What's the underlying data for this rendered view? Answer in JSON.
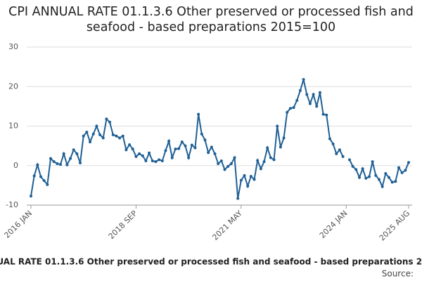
{
  "chart_data": {
    "type": "line",
    "title": "CPI ANNUAL RATE 01.1.3.6 Other preserved or processed fish and seafood - based preparations 2015=100",
    "source": "Source:",
    "categories": [
      "2016 JAN",
      null,
      null,
      null,
      null,
      null,
      null,
      null,
      null,
      null,
      null,
      null,
      null,
      null,
      null,
      null,
      null,
      null,
      null,
      null,
      null,
      null,
      null,
      null,
      null,
      null,
      null,
      null,
      null,
      null,
      null,
      null,
      "2018 SEP",
      null,
      null,
      null,
      null,
      null,
      null,
      null,
      null,
      null,
      null,
      null,
      null,
      null,
      null,
      null,
      null,
      null,
      null,
      null,
      null,
      null,
      null,
      null,
      null,
      null,
      null,
      null,
      null,
      null,
      null,
      null,
      "2021 MAY",
      null,
      null,
      null,
      null,
      null,
      null,
      null,
      null,
      null,
      null,
      null,
      null,
      null,
      null,
      null,
      null,
      null,
      null,
      null,
      null,
      null,
      null,
      null,
      null,
      null,
      null,
      null,
      null,
      null,
      null,
      null,
      "2024 JAN",
      null,
      null,
      null,
      null,
      null,
      null,
      null,
      null,
      null,
      null,
      null,
      null,
      null,
      null,
      null,
      null,
      null,
      null,
      "2025 AUG"
    ],
    "series": [
      {
        "name": "CPI ANNUAL RATE 01.1.3.6",
        "color": "#206095",
        "values": [
          -7.7,
          -2.6,
          0.2,
          -2.8,
          -3.8,
          -4.8,
          1.8,
          1.0,
          0.5,
          0.3,
          3.0,
          0.2,
          1.8,
          4.0,
          3.0,
          0.7,
          7.5,
          8.5,
          6.0,
          8.0,
          10.0,
          7.8,
          7.0,
          11.8,
          11.0,
          7.8,
          7.5,
          7.0,
          7.5,
          4.0,
          5.3,
          4.2,
          2.3,
          3.0,
          2.5,
          1.2,
          3.2,
          1.2,
          1.0,
          1.5,
          1.2,
          3.8,
          6.2,
          2.0,
          4.2,
          4.3,
          6.0,
          5.0,
          2.0,
          5.2,
          4.5,
          13.0,
          8.0,
          6.5,
          3.3,
          4.7,
          3.0,
          0.5,
          1.2,
          -1.0,
          -0.2,
          0.5,
          2.0,
          -8.3,
          -3.7,
          -2.5,
          -5.2,
          -2.7,
          -3.5,
          1.3,
          -0.8,
          1.0,
          4.5,
          2.0,
          1.5,
          10.0,
          4.7,
          7.0,
          13.5,
          14.5,
          14.7,
          16.5,
          19.0,
          21.8,
          18.0,
          15.7,
          18.0,
          15.0,
          18.5,
          13.0,
          12.8,
          6.8,
          5.5,
          3.0,
          4.0,
          2.3,
          null,
          1.5,
          -0.2,
          -1.0,
          -3.0,
          -0.8,
          -3.2,
          -2.8,
          1.0,
          -2.5,
          -3.5,
          -5.3,
          -2.0,
          -3.0,
          -4.2,
          -4.0,
          -0.5,
          -1.8,
          -1.2,
          0.8
        ]
      }
    ],
    "ylim": [
      -10,
      30
    ],
    "yticks": [
      -10,
      0,
      10,
      20,
      30
    ],
    "grid": true
  }
}
